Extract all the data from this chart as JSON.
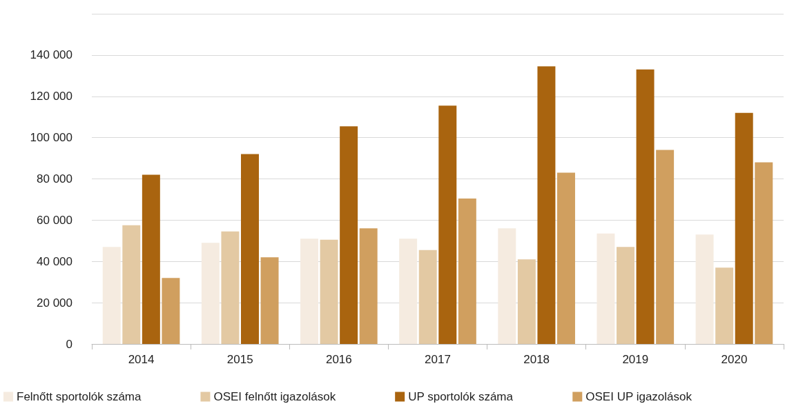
{
  "chart_data": {
    "type": "bar",
    "categories": [
      "2014",
      "2015",
      "2016",
      "2017",
      "2018",
      "2019",
      "2020"
    ],
    "series": [
      {
        "name": "Felnőtt sportolók száma",
        "color": "#f5ebe0",
        "values": [
          47000,
          49000,
          51000,
          51000,
          56000,
          53500,
          53000
        ]
      },
      {
        "name": "OSEI felnőtt igazolások",
        "color": "#e3c9a3",
        "values": [
          57500,
          54500,
          50500,
          45500,
          41000,
          47000,
          37000
        ]
      },
      {
        "name": "UP sportolók száma",
        "color": "#a9640f",
        "values": [
          82000,
          92000,
          105500,
          115500,
          134500,
          133000,
          112000
        ]
      },
      {
        "name": "OSEI UP igazolások",
        "color": "#d09f5f",
        "values": [
          32000,
          42000,
          56000,
          70500,
          83000,
          94000,
          88000
        ]
      }
    ],
    "ylim": [
      0,
      160000
    ],
    "yticks": [
      {
        "value": 0,
        "label": "0"
      },
      {
        "value": 20000,
        "label": "20 000"
      },
      {
        "value": 40000,
        "label": "40 000"
      },
      {
        "value": 60000,
        "label": "60 000"
      },
      {
        "value": 80000,
        "label": "80 000"
      },
      {
        "value": 100000,
        "label": "100 000"
      },
      {
        "value": 120000,
        "label": "120 000"
      },
      {
        "value": 140000,
        "label": "140 000"
      },
      {
        "value": 160000,
        "label": null
      }
    ],
    "grid": "y",
    "legend": "bottom"
  }
}
